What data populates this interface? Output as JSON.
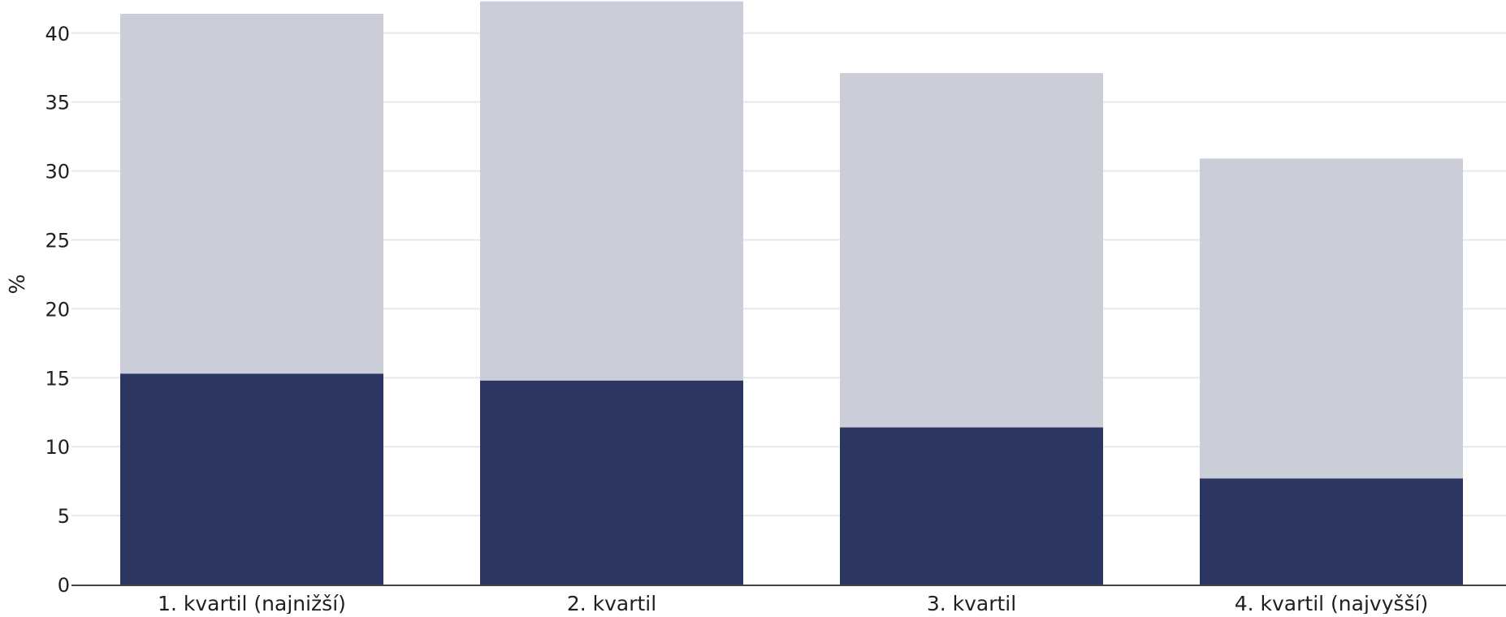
{
  "chart_data": {
    "type": "bar",
    "stacked": true,
    "categories": [
      "1. kvartil (najnižší)",
      "2. kvartil",
      "3. kvartil",
      "4. kvartil (najvyšší)"
    ],
    "series": [
      {
        "values": [
          15.3,
          14.8,
          11.4,
          7.7
        ],
        "color": "#2b3663"
      },
      {
        "values": [
          26.1,
          27.5,
          25.7,
          23.2
        ],
        "color": "#cbcdd9"
      }
    ],
    "xlabel": "",
    "ylabel": "%",
    "ylim": [
      0,
      42.4
    ],
    "yticks": [
      0,
      5,
      10,
      15,
      20,
      25,
      30,
      35,
      40
    ],
    "grid": true,
    "legend": "none"
  }
}
